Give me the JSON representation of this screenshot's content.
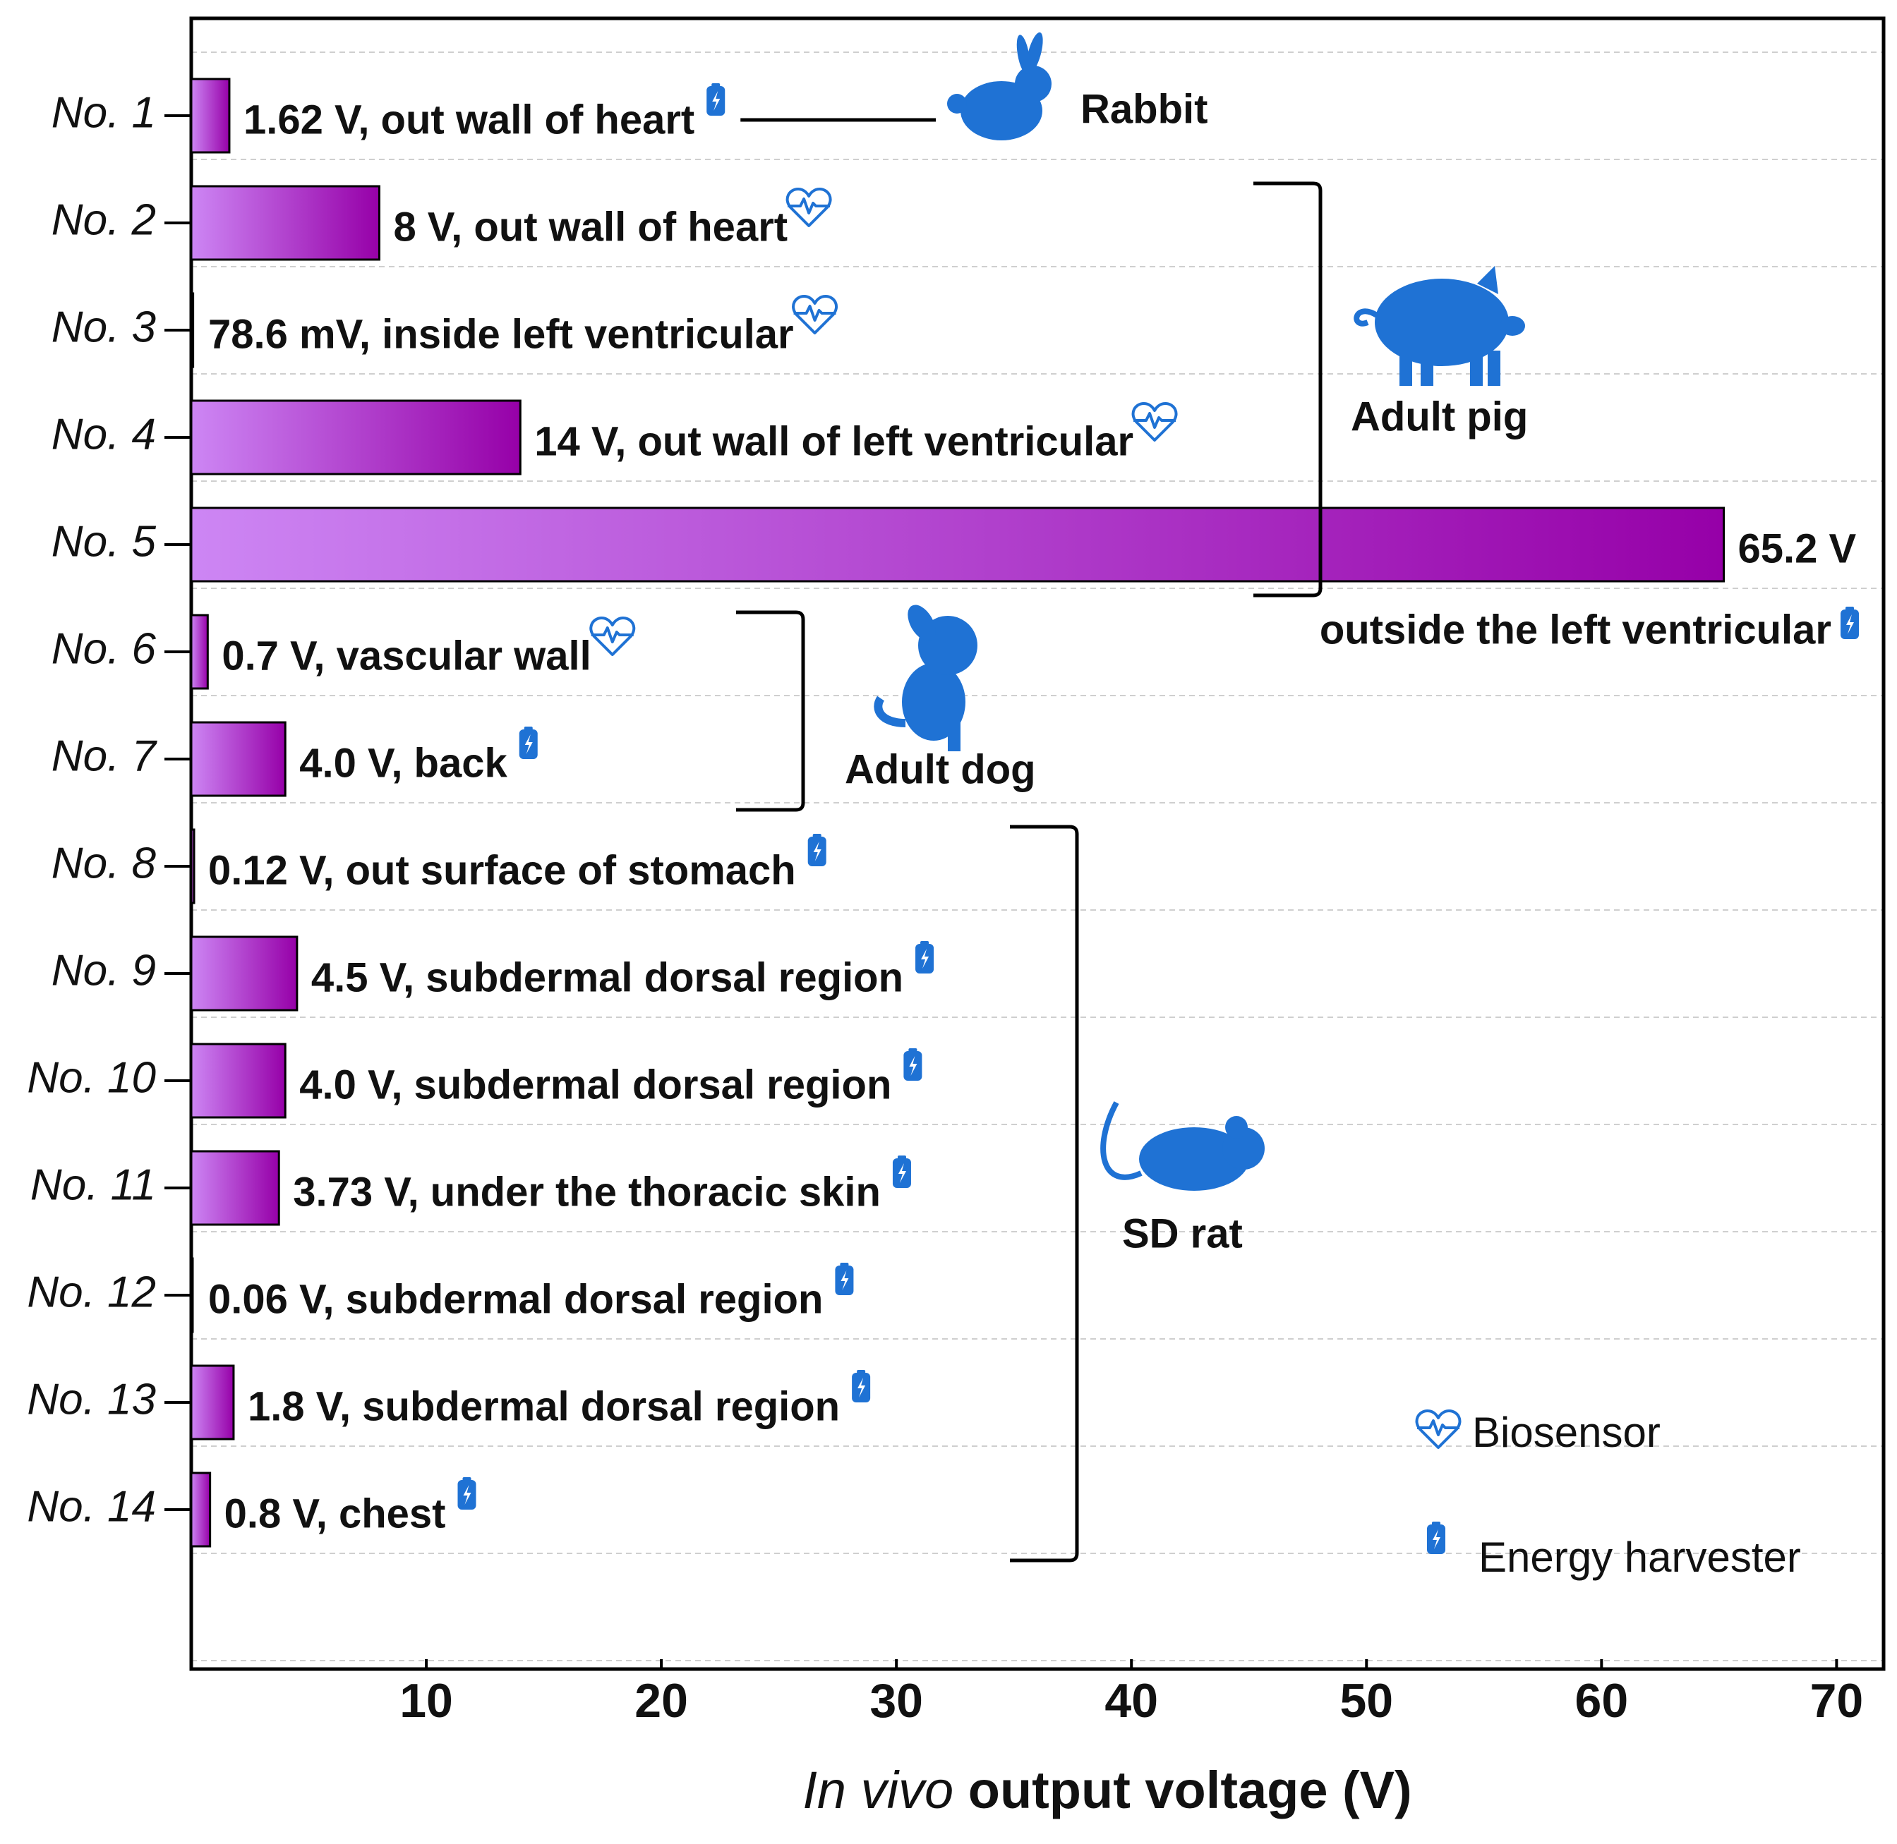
{
  "chart_data": {
    "type": "bar",
    "orientation": "horizontal",
    "categories": [
      "No. 1",
      "No. 2",
      "No. 3",
      "No. 4",
      "No. 5",
      "No. 6",
      "No. 7",
      "No. 8",
      "No. 9",
      "No. 10",
      "No. 11",
      "No. 12",
      "No. 13",
      "No. 14"
    ],
    "values": [
      1.62,
      8,
      0.0786,
      14,
      65.2,
      0.7,
      4.0,
      0.12,
      4.5,
      4.0,
      3.73,
      0.06,
      1.8,
      0.8
    ],
    "value_labels": [
      "1.62 V, out wall of heart",
      "8 V, out wall of heart",
      "78.6 mV, inside left ventricular",
      "14 V, out wall of left ventricular",
      "65.2 V",
      "0.7 V, vascular wall",
      "4.0 V, back",
      "0.12 V, out surface of stomach",
      "4.5 V, subdermal dorsal region",
      "4.0 V, subdermal dorsal region",
      "3.73 V, under the thoracic skin",
      "0.06 V, subdermal dorsal region",
      "1.8 V, subdermal dorsal region",
      "0.8 V, chest"
    ],
    "devices": [
      "Energy harvester",
      "Biosensor",
      "Biosensor",
      "Biosensor",
      "Energy harvester",
      "Biosensor",
      "Energy harvester",
      "Energy harvester",
      "Energy harvester",
      "Energy harvester",
      "Energy harvester",
      "Energy harvester",
      "Energy harvester",
      "Energy harvester"
    ],
    "annotations": [
      {
        "category": "No. 5",
        "text": "outside the left ventricular"
      }
    ],
    "groups": [
      {
        "label": "Rabbit",
        "categories": [
          "No. 1"
        ]
      },
      {
        "label": "Adult pig",
        "categories": [
          "No. 2",
          "No. 3",
          "No. 4",
          "No. 5"
        ]
      },
      {
        "label": "Adult dog",
        "categories": [
          "No. 6",
          "No. 7"
        ]
      },
      {
        "label": "SD rat",
        "categories": [
          "No. 8",
          "No. 9",
          "No. 10",
          "No. 11",
          "No. 12",
          "No. 13",
          "No. 14"
        ]
      }
    ],
    "legend": [
      "Biosensor",
      "Energy harvester"
    ],
    "bar_gradient": [
      "#cd86f4",
      "#9600a8"
    ],
    "icon_color": "#1f72d4",
    "xlabel_italic": "In vivo",
    "xlabel": "output voltage (V)",
    "xlim": [
      0,
      72
    ],
    "xticks": [
      10,
      20,
      30,
      40,
      50,
      60,
      70
    ],
    "grid": true
  }
}
